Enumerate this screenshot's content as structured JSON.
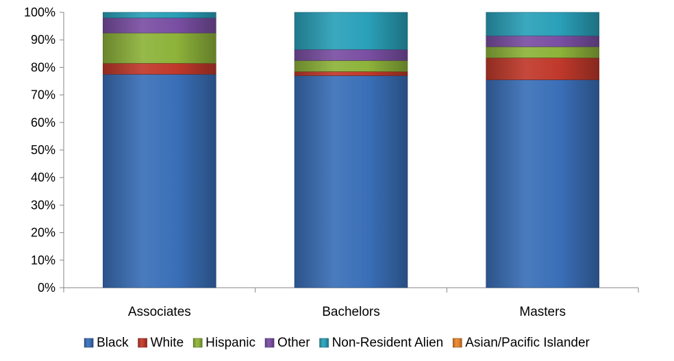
{
  "chart_data": {
    "type": "bar",
    "stacked": true,
    "percent_stacked": true,
    "title": "",
    "xlabel": "",
    "ylabel": "",
    "ylim": [
      0,
      100
    ],
    "yticks": [
      "0%",
      "10%",
      "20%",
      "30%",
      "40%",
      "50%",
      "60%",
      "70%",
      "80%",
      "90%",
      "100%"
    ],
    "categories": [
      "Associates",
      "Bachelors",
      "Masters"
    ],
    "series": [
      {
        "name": "Black",
        "color": "#3a6fb8",
        "values": [
          77.5,
          77.0,
          75.5
        ]
      },
      {
        "name": "White",
        "color": "#c0392b",
        "values": [
          4.0,
          1.5,
          8.0
        ]
      },
      {
        "name": "Hispanic",
        "color": "#8db33a",
        "values": [
          11.0,
          4.0,
          4.0
        ]
      },
      {
        "name": "Other",
        "color": "#7a4fa3",
        "values": [
          5.5,
          4.0,
          4.0
        ]
      },
      {
        "name": "Non-Resident Alien",
        "color": "#2aa0b8",
        "values": [
          2.0,
          13.5,
          8.5
        ]
      },
      {
        "name": "Asian/Pacific Islander",
        "color": "#e8842c",
        "values": [
          0.0,
          0.0,
          0.0
        ]
      }
    ],
    "legend_position": "bottom",
    "grid": false
  }
}
